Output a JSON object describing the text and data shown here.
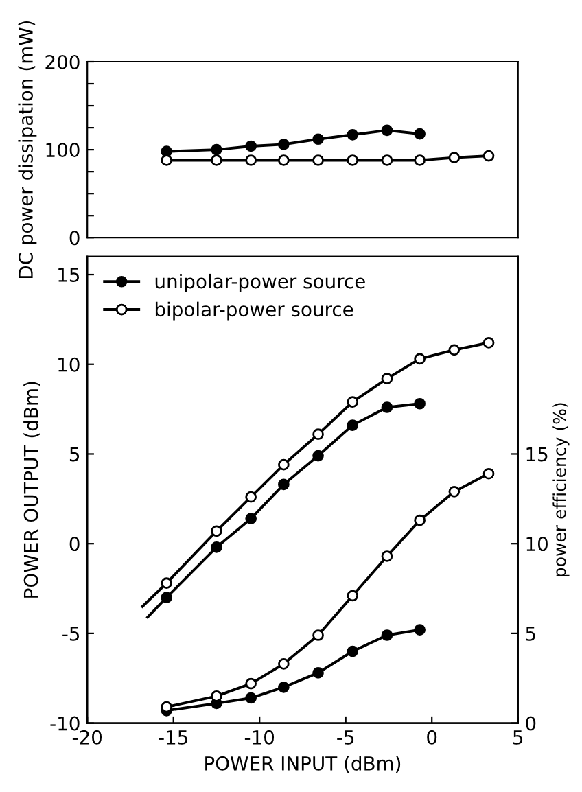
{
  "chart_data": [
    {
      "type": "line",
      "ylabel": "DC power dissipation (mW)",
      "xlim": [
        -20,
        5
      ],
      "ylim": [
        0,
        200
      ],
      "tick_labels": "y",
      "marker": "circle",
      "line_style": "solid",
      "grid": false,
      "legend": false,
      "yticks": [
        0,
        {
          "value": 25,
          "label": null
        },
        {
          "value": 50,
          "label": null
        },
        {
          "value": 75,
          "label": null
        },
        100,
        {
          "value": 125,
          "label": null
        },
        {
          "value": 150,
          "label": null
        },
        {
          "value": 175,
          "label": null
        },
        200
      ],
      "series": [
        {
          "color": "#000000",
          "x": [
            -15.4,
            -12.5,
            -10.5,
            -8.6,
            -6.6,
            -4.6,
            -2.6,
            -0.7
          ],
          "values": [
            98,
            100,
            104,
            106,
            112,
            117,
            122,
            118
          ]
        },
        {
          "color": "#000000",
          "colors": [
            "#ffffff",
            "#ffffff",
            "#ffffff",
            "#ffffff",
            "#ffffff",
            "#ffffff",
            "#ffffff",
            "#ffffff",
            "#ffffff",
            "#ffffff"
          ],
          "x": [
            -15.4,
            -12.5,
            -10.5,
            -8.6,
            -6.6,
            -4.6,
            -2.6,
            -0.7,
            1.3,
            3.3
          ],
          "values": [
            88,
            88,
            88,
            88,
            88,
            88,
            88,
            88,
            91,
            93
          ]
        }
      ]
    },
    {
      "type": "line",
      "xlabel": "POWER INPUT (dBm)",
      "ylabel": "POWER OUTPUT (dBm)",
      "y2label": "power efficiency (%)",
      "xlim": [
        -20,
        5
      ],
      "xticks": [
        -20,
        -15,
        -10,
        -5,
        0,
        5
      ],
      "ylim": [
        -10,
        16
      ],
      "yticks": [
        -10,
        -5,
        0,
        5,
        10,
        15
      ],
      "y2lim": [
        0,
        26
      ],
      "y2ticks": [
        0,
        5,
        10,
        15
      ],
      "marker": "circle",
      "line_style": "solid",
      "grid": false,
      "legend": "top left",
      "series": [
        {
          "name": "unipolar-power source",
          "color": "#000000",
          "x": [
            -15.4,
            -12.5,
            -10.5,
            -8.6,
            -6.6,
            -4.6,
            -2.6,
            -0.7
          ],
          "values": [
            -3.0,
            -0.2,
            1.4,
            3.3,
            4.9,
            6.6,
            7.6,
            7.8
          ]
        },
        {
          "name": "bipolar-power source",
          "color": "#000000",
          "colors": [
            "#ffffff",
            "#ffffff",
            "#ffffff",
            "#ffffff",
            "#ffffff",
            "#ffffff",
            "#ffffff",
            "#ffffff",
            "#ffffff",
            "#ffffff"
          ],
          "x": [
            -15.4,
            -12.5,
            -10.5,
            -8.6,
            -6.6,
            -4.6,
            -2.6,
            -0.7,
            1.3,
            3.3
          ],
          "values": [
            -2.2,
            0.7,
            2.6,
            4.4,
            6.1,
            7.9,
            9.2,
            10.3,
            10.8,
            11.2
          ]
        },
        {
          "color": "#000000",
          "marker": "none",
          "x": [
            -16.5,
            -15.4
          ],
          "values": [
            -4.1,
            -3.0
          ]
        },
        {
          "color": "#000000",
          "marker": "none",
          "x": [
            -16.8,
            -15.4
          ],
          "values": [
            -3.5,
            -2.2
          ]
        },
        {
          "color": "#000000",
          "axis": "y2",
          "x": [
            -15.4,
            -12.5,
            -10.5,
            -8.6,
            -6.6,
            -4.6,
            -2.6,
            -0.7
          ],
          "values": [
            0.7,
            1.1,
            1.4,
            2.0,
            2.8,
            4.0,
            4.9,
            5.2
          ]
        },
        {
          "color": "#000000",
          "colors": [
            "#ffffff",
            "#ffffff",
            "#ffffff",
            "#ffffff",
            "#ffffff",
            "#ffffff",
            "#ffffff",
            "#ffffff",
            "#ffffff",
            "#ffffff"
          ],
          "axis": "y2",
          "x": [
            -15.4,
            -12.5,
            -10.5,
            -8.6,
            -6.6,
            -4.6,
            -2.6,
            -0.7,
            1.3,
            3.3
          ],
          "values": [
            0.9,
            1.5,
            2.2,
            3.3,
            4.9,
            7.1,
            9.3,
            11.3,
            12.9,
            13.9
          ]
        }
      ]
    }
  ]
}
